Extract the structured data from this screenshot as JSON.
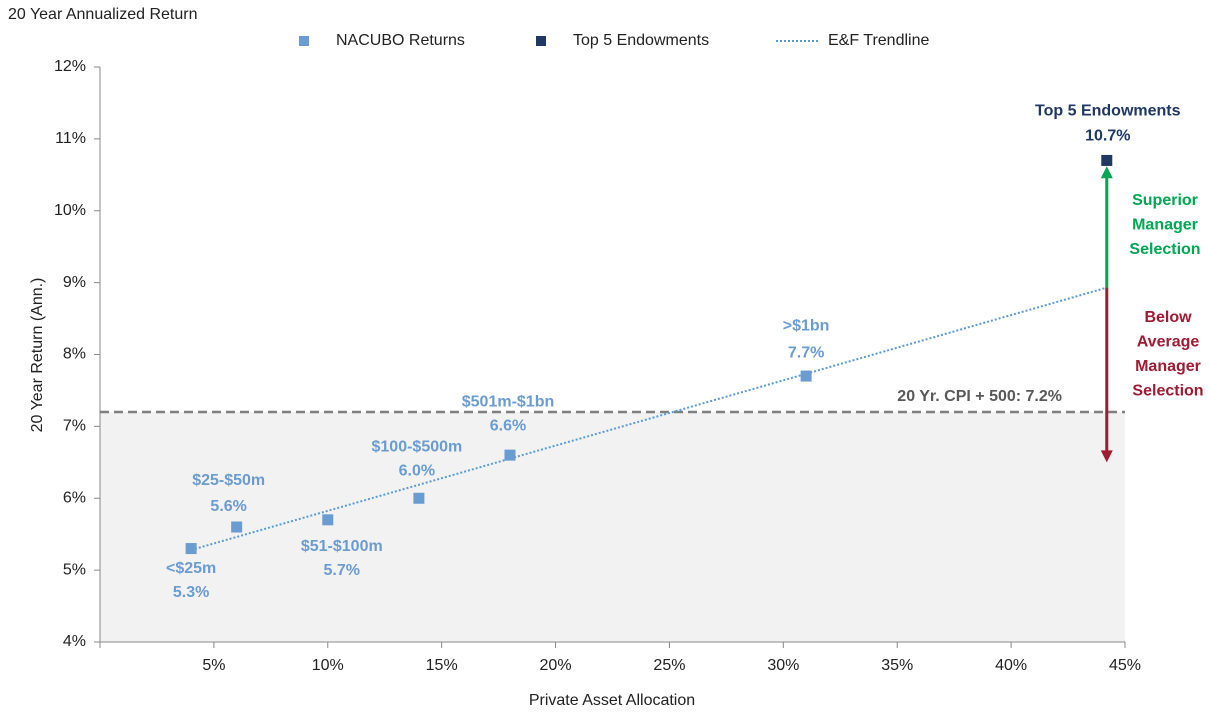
{
  "chart_data": {
    "type": "scatter",
    "title": "20 Year Annualized Return",
    "xlabel": "Private Asset Allocation",
    "ylabel": "20 Year Return (Ann.)",
    "xlim": [
      0,
      45
    ],
    "xticks": [
      {
        "value": 5,
        "label": "5%"
      },
      {
        "value": 10,
        "label": "10%"
      },
      {
        "value": 15,
        "label": "15%"
      },
      {
        "value": 20,
        "label": "20%"
      },
      {
        "value": 25,
        "label": "25%"
      },
      {
        "value": 30,
        "label": "30%"
      },
      {
        "value": 35,
        "label": "35%"
      },
      {
        "value": 40,
        "label": "40%"
      },
      {
        "value": 45,
        "label": "45%"
      }
    ],
    "ylim": [
      4,
      12
    ],
    "yticks": [
      {
        "value": 4,
        "label": "4%"
      },
      {
        "value": 5,
        "label": "5%"
      },
      {
        "value": 6,
        "label": "6%"
      },
      {
        "value": 7,
        "label": "7%"
      },
      {
        "value": 8,
        "label": "8%"
      },
      {
        "value": 9,
        "label": "9%"
      },
      {
        "value": 10,
        "label": "10%"
      },
      {
        "value": 11,
        "label": "11%"
      },
      {
        "value": 12,
        "label": "12%"
      }
    ],
    "legend": "top",
    "series": [
      {
        "name": "NACUBO Returns",
        "color": "#6a9bd1",
        "x": [
          4,
          6,
          10,
          14,
          18,
          31
        ],
        "values": [
          5.3,
          5.6,
          5.7,
          6.0,
          6.6,
          7.7
        ],
        "labels": [
          "<$25m",
          "$25-$50m",
          "$51-$100m",
          "$100-$500m",
          "$501m-$1bn",
          ">$1bn"
        ],
        "value_labels": [
          "5.3%",
          "5.6%",
          "5.7%",
          "6.0%",
          "6.6%",
          "7.7%"
        ]
      },
      {
        "name": "Top 5 Endowments",
        "color": "#1f3864",
        "x": [
          44.2
        ],
        "values": [
          10.7
        ],
        "labels": [
          "Top 5 Endowments"
        ],
        "value_labels": [
          "10.7%"
        ]
      },
      {
        "name": "E&F Trendline",
        "color": "#5b9bd5",
        "x": [
          4,
          44.2
        ],
        "values": [
          5.28,
          8.93
        ]
      }
    ],
    "reference_line": {
      "value": 7.2,
      "label": "20 Yr. CPI + 500: 7.2%",
      "color": "#7f7f7f"
    },
    "annotations": [
      {
        "text": [
          "Superior",
          "Manager",
          "Selection"
        ],
        "color": "#00a651",
        "to": 10.62
      },
      {
        "text": [
          "Below",
          "Average",
          "Manager",
          "Selection"
        ],
        "color": "#9e1b32",
        "to": 6.5
      }
    ]
  }
}
